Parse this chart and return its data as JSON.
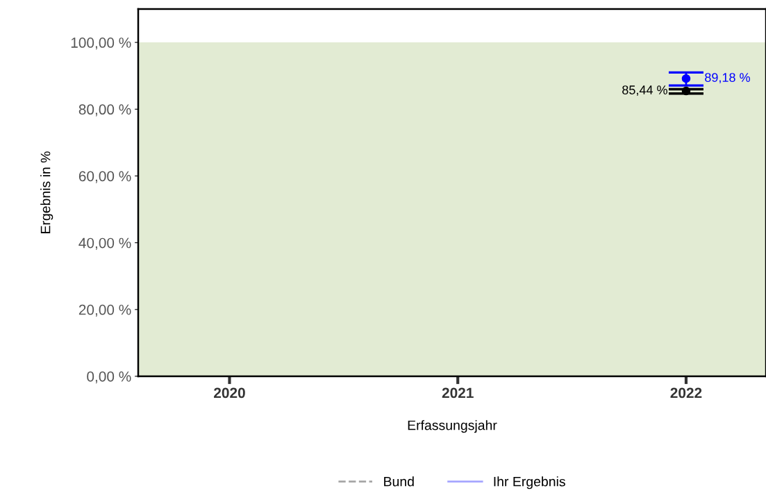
{
  "chart_data": {
    "type": "line",
    "xlabel": "Erfassungsjahr",
    "ylabel": "Ergebnis in %",
    "categories": [
      "2020",
      "2021",
      "2022"
    ],
    "ylim": [
      0,
      110
    ],
    "yticks": [
      {
        "value": 0,
        "label": "0,00 %"
      },
      {
        "value": 20,
        "label": "20,00 %"
      },
      {
        "value": 40,
        "label": "40,00 %"
      },
      {
        "value": 60,
        "label": "60,00 %"
      },
      {
        "value": 80,
        "label": "80,00 %"
      },
      {
        "value": 100,
        "label": "100,00 %"
      }
    ],
    "series": [
      {
        "name": "Bund",
        "color": "#000000",
        "line_style": "dashed",
        "values": [
          null,
          null,
          85.44
        ],
        "errors": [
          null,
          null,
          [
            84.7,
            86.0
          ]
        ],
        "value_labels": [
          null,
          null,
          "85,44 %"
        ]
      },
      {
        "name": "Ihr Ergebnis",
        "color": "#0000ff",
        "line_style": "solid",
        "values": [
          null,
          null,
          89.18
        ],
        "errors": [
          null,
          null,
          [
            87.1,
            91.0
          ]
        ],
        "value_labels": [
          null,
          null,
          "89,18 %"
        ]
      }
    ],
    "bands": [
      {
        "axis": "y",
        "from": 0,
        "to": 100,
        "color": "#e2ebd3"
      }
    ],
    "marker": "circle",
    "legend": "bottom",
    "grid": false
  }
}
